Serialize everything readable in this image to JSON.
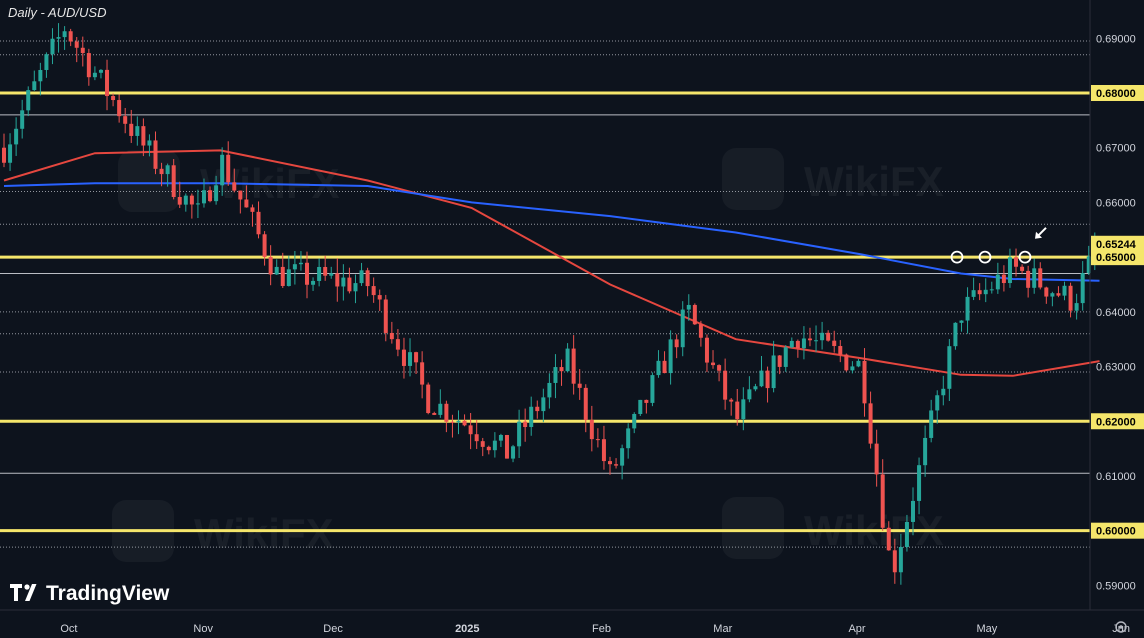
{
  "chart_data": {
    "type": "candlestick",
    "title": "Daily - AUD/USD",
    "x_ticks": [
      "Oct",
      "Nov",
      "Dec",
      "2025",
      "Feb",
      "Mar",
      "Apr",
      "May",
      "Jun"
    ],
    "y_ticks": [
      0.59,
      0.6,
      0.61,
      0.62,
      0.63,
      0.64,
      0.65,
      0.66,
      0.67,
      0.68,
      0.69
    ],
    "ylim": [
      0.5855,
      0.697
    ],
    "current_price": 0.65244,
    "current_price_label": "0.65244",
    "key_levels": [
      {
        "value": 0.6,
        "label": "0.60000"
      },
      {
        "value": 0.62,
        "label": "0.62000"
      },
      {
        "value": 0.65,
        "label": "0.65000"
      },
      {
        "value": 0.68,
        "label": "0.68000"
      }
    ],
    "minor_levels": {
      "solid": [
        0.6105,
        0.647,
        0.676
      ],
      "dotted": [
        0.597,
        0.629,
        0.636,
        0.64,
        0.656,
        0.662,
        0.687,
        0.6895
      ]
    },
    "highlight_circles": [
      0.65,
      0.65,
      0.65
    ],
    "ohlc_anchors": [
      {
        "date": "2024-09-16",
        "close": 0.67
      },
      {
        "date": "2024-09-30",
        "close": 0.692
      },
      {
        "date": "2024-10-18",
        "close": 0.6705
      },
      {
        "date": "2024-10-31",
        "close": 0.6575
      },
      {
        "date": "2024-11-05",
        "close": 0.668
      },
      {
        "date": "2024-11-18",
        "close": 0.647
      },
      {
        "date": "2024-12-09",
        "close": 0.645
      },
      {
        "date": "2024-12-23",
        "close": 0.624
      },
      {
        "date": "2025-01-02",
        "close": 0.619
      },
      {
        "date": "2025-01-10",
        "close": 0.614
      },
      {
        "date": "2025-01-24",
        "close": 0.631
      },
      {
        "date": "2025-02-03",
        "close": 0.61
      },
      {
        "date": "2025-02-21",
        "close": 0.64
      },
      {
        "date": "2025-03-04",
        "close": 0.62
      },
      {
        "date": "2025-03-18",
        "close": 0.636
      },
      {
        "date": "2025-04-02",
        "close": 0.63
      },
      {
        "date": "2025-04-09",
        "close": 0.592
      },
      {
        "date": "2025-04-25",
        "close": 0.64
      },
      {
        "date": "2025-05-07",
        "close": 0.648
      },
      {
        "date": "2025-05-21",
        "close": 0.642
      },
      {
        "date": "2025-05-27",
        "close": 0.65244
      }
    ],
    "moving_averages": [
      {
        "color": "#e5473f",
        "points": [
          [
            "2024-09-16",
            0.664
          ],
          [
            "2024-10-07",
            0.669
          ],
          [
            "2024-11-05",
            0.6695
          ],
          [
            "2024-12-09",
            0.664
          ],
          [
            "2025-01-02",
            0.659
          ],
          [
            "2025-02-03",
            0.645
          ],
          [
            "2025-03-04",
            0.635
          ],
          [
            "2025-04-02",
            0.6315
          ],
          [
            "2025-04-25",
            0.6285
          ],
          [
            "2025-05-07",
            0.6283
          ],
          [
            "2025-05-27",
            0.631
          ]
        ]
      },
      {
        "color": "#2962ff",
        "points": [
          [
            "2024-09-16",
            0.663
          ],
          [
            "2024-10-07",
            0.6635
          ],
          [
            "2024-11-05",
            0.6635
          ],
          [
            "2024-12-09",
            0.663
          ],
          [
            "2025-01-02",
            0.66
          ],
          [
            "2025-02-03",
            0.6575
          ],
          [
            "2025-03-04",
            0.6545
          ],
          [
            "2025-04-02",
            0.6505
          ],
          [
            "2025-04-25",
            0.647
          ],
          [
            "2025-05-07",
            0.646
          ],
          [
            "2025-05-27",
            0.6457
          ]
        ]
      }
    ],
    "colors": {
      "up": "#26a69a",
      "down": "#ef5350",
      "level": "#f5e66b",
      "axis_bg": "#0d131d",
      "grid_dotted": "#bfc3ca"
    }
  },
  "branding": {
    "name": "TradingView",
    "watermark": "WikiFX"
  }
}
